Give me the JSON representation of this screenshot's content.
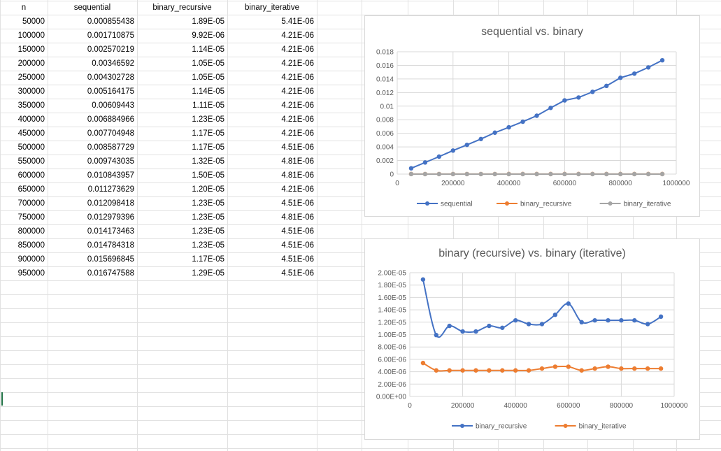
{
  "spreadsheet": {
    "headers": [
      "n",
      "sequential",
      "binary_recursive",
      "binary_iterative"
    ],
    "rows": [
      [
        "50000",
        "0.000855438",
        "1.89E-05",
        "5.41E-06"
      ],
      [
        "100000",
        "0.001710875",
        "9.92E-06",
        "4.21E-06"
      ],
      [
        "150000",
        "0.002570219",
        "1.14E-05",
        "4.21E-06"
      ],
      [
        "200000",
        "0.00346592",
        "1.05E-05",
        "4.21E-06"
      ],
      [
        "250000",
        "0.004302728",
        "1.05E-05",
        "4.21E-06"
      ],
      [
        "300000",
        "0.005164175",
        "1.14E-05",
        "4.21E-06"
      ],
      [
        "350000",
        "0.00609443",
        "1.11E-05",
        "4.21E-06"
      ],
      [
        "400000",
        "0.006884966",
        "1.23E-05",
        "4.21E-06"
      ],
      [
        "450000",
        "0.007704948",
        "1.17E-05",
        "4.21E-06"
      ],
      [
        "500000",
        "0.008587729",
        "1.17E-05",
        "4.51E-06"
      ],
      [
        "550000",
        "0.009743035",
        "1.32E-05",
        "4.81E-06"
      ],
      [
        "600000",
        "0.010843957",
        "1.50E-05",
        "4.81E-06"
      ],
      [
        "650000",
        "0.011273629",
        "1.20E-05",
        "4.21E-06"
      ],
      [
        "700000",
        "0.012098418",
        "1.23E-05",
        "4.51E-06"
      ],
      [
        "750000",
        "0.012979396",
        "1.23E-05",
        "4.81E-06"
      ],
      [
        "800000",
        "0.014173463",
        "1.23E-05",
        "4.51E-06"
      ],
      [
        "850000",
        "0.014784318",
        "1.23E-05",
        "4.51E-06"
      ],
      [
        "900000",
        "0.015696845",
        "1.17E-05",
        "4.51E-06"
      ],
      [
        "950000",
        "0.016747588",
        "1.29E-05",
        "4.51E-06"
      ]
    ]
  },
  "colors": {
    "blue": "#4472c4",
    "orange": "#ed7d31",
    "gray": "#a5a5a5",
    "gridline": "#d9d9d9",
    "cell_border": "#e1e1e1"
  },
  "chart_data": [
    {
      "type": "scatter",
      "title": "sequential vs. binary",
      "x": [
        50000,
        100000,
        150000,
        200000,
        250000,
        300000,
        350000,
        400000,
        450000,
        500000,
        550000,
        600000,
        650000,
        700000,
        750000,
        800000,
        850000,
        900000,
        950000
      ],
      "xlim": [
        0,
        1000000
      ],
      "xticks": [
        "0",
        "200000",
        "400000",
        "600000",
        "800000",
        "1000000"
      ],
      "ylim": [
        0,
        0.018
      ],
      "yticks": [
        "0",
        "0.002",
        "0.004",
        "0.006",
        "0.008",
        "0.01",
        "0.012",
        "0.014",
        "0.016",
        "0.018"
      ],
      "legend_position": "bottom",
      "grid": true,
      "series": [
        {
          "name": "sequential",
          "color": "#4472c4",
          "values": [
            0.000855438,
            0.001710875,
            0.002570219,
            0.00346592,
            0.004302728,
            0.005164175,
            0.00609443,
            0.006884966,
            0.007704948,
            0.008587729,
            0.009743035,
            0.010843957,
            0.011273629,
            0.012098418,
            0.012979396,
            0.014173463,
            0.014784318,
            0.015696845,
            0.016747588
          ]
        },
        {
          "name": "binary_recursive",
          "color": "#ed7d31",
          "values": [
            1.89e-05,
            9.92e-06,
            1.14e-05,
            1.05e-05,
            1.05e-05,
            1.14e-05,
            1.11e-05,
            1.23e-05,
            1.17e-05,
            1.17e-05,
            1.32e-05,
            1.5e-05,
            1.2e-05,
            1.23e-05,
            1.23e-05,
            1.23e-05,
            1.23e-05,
            1.17e-05,
            1.29e-05
          ]
        },
        {
          "name": "binary_iterative",
          "color": "#a5a5a5",
          "values": [
            5.41e-06,
            4.21e-06,
            4.21e-06,
            4.21e-06,
            4.21e-06,
            4.21e-06,
            4.21e-06,
            4.21e-06,
            4.21e-06,
            4.51e-06,
            4.81e-06,
            4.81e-06,
            4.21e-06,
            4.51e-06,
            4.81e-06,
            4.51e-06,
            4.51e-06,
            4.51e-06,
            4.51e-06
          ]
        }
      ]
    },
    {
      "type": "scatter",
      "title": "binary (recursive) vs. binary (iterative)",
      "x": [
        50000,
        100000,
        150000,
        200000,
        250000,
        300000,
        350000,
        400000,
        450000,
        500000,
        550000,
        600000,
        650000,
        700000,
        750000,
        800000,
        850000,
        900000,
        950000
      ],
      "xlim": [
        0,
        1000000
      ],
      "xticks": [
        "0",
        "200000",
        "400000",
        "600000",
        "800000",
        "1000000"
      ],
      "ylim": [
        0,
        2e-05
      ],
      "yticks": [
        "0.00E+00",
        "2.00E-06",
        "4.00E-06",
        "6.00E-06",
        "8.00E-06",
        "1.00E-05",
        "1.20E-05",
        "1.40E-05",
        "1.60E-05",
        "1.80E-05",
        "2.00E-05"
      ],
      "legend_position": "bottom",
      "grid": true,
      "series": [
        {
          "name": "binary_recursive",
          "color": "#4472c4",
          "values": [
            1.89e-05,
            9.92e-06,
            1.14e-05,
            1.05e-05,
            1.05e-05,
            1.14e-05,
            1.11e-05,
            1.23e-05,
            1.17e-05,
            1.17e-05,
            1.32e-05,
            1.5e-05,
            1.2e-05,
            1.23e-05,
            1.23e-05,
            1.23e-05,
            1.23e-05,
            1.17e-05,
            1.29e-05
          ]
        },
        {
          "name": "binary_iterative",
          "color": "#ed7d31",
          "values": [
            5.41e-06,
            4.21e-06,
            4.21e-06,
            4.21e-06,
            4.21e-06,
            4.21e-06,
            4.21e-06,
            4.21e-06,
            4.21e-06,
            4.51e-06,
            4.81e-06,
            4.81e-06,
            4.21e-06,
            4.51e-06,
            4.81e-06,
            4.51e-06,
            4.51e-06,
            4.51e-06,
            4.51e-06
          ]
        }
      ]
    }
  ]
}
